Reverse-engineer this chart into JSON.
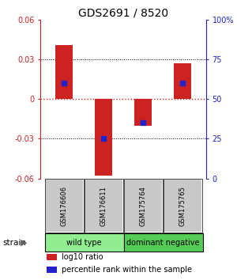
{
  "title": "GDS2691 / 8520",
  "samples": [
    "GSM176606",
    "GSM176611",
    "GSM175764",
    "GSM175765"
  ],
  "log10_ratio": [
    0.041,
    -0.058,
    -0.02,
    0.027
  ],
  "percentile_rank": [
    60,
    25,
    35,
    60
  ],
  "groups": [
    {
      "label": "wild type",
      "start": 0,
      "end": 2,
      "color": "#90ee90"
    },
    {
      "label": "dominant negative",
      "start": 2,
      "end": 4,
      "color": "#55cc55"
    }
  ],
  "ylim": [
    -0.06,
    0.06
  ],
  "y2lim": [
    0,
    100
  ],
  "yticks": [
    -0.06,
    -0.03,
    0,
    0.03,
    0.06
  ],
  "ytick_labels": [
    "-0.06",
    "-0.03",
    "0",
    "0.03",
    "0.06"
  ],
  "y2ticks": [
    0,
    25,
    50,
    75,
    100
  ],
  "y2tick_labels": [
    "0",
    "25",
    "50",
    "75",
    "100%"
  ],
  "bar_color": "#cc2222",
  "dot_color": "#2222cc",
  "zero_line_color": "#cc2222",
  "dotted_line_color": "#555555",
  "bar_width": 0.45,
  "legend_items": [
    "log10 ratio",
    "percentile rank within the sample"
  ],
  "legend_colors": [
    "#cc2222",
    "#2222cc"
  ],
  "strain_label": "strain",
  "sample_box_color": "#c8c8c8",
  "group_border_color": "#000000"
}
